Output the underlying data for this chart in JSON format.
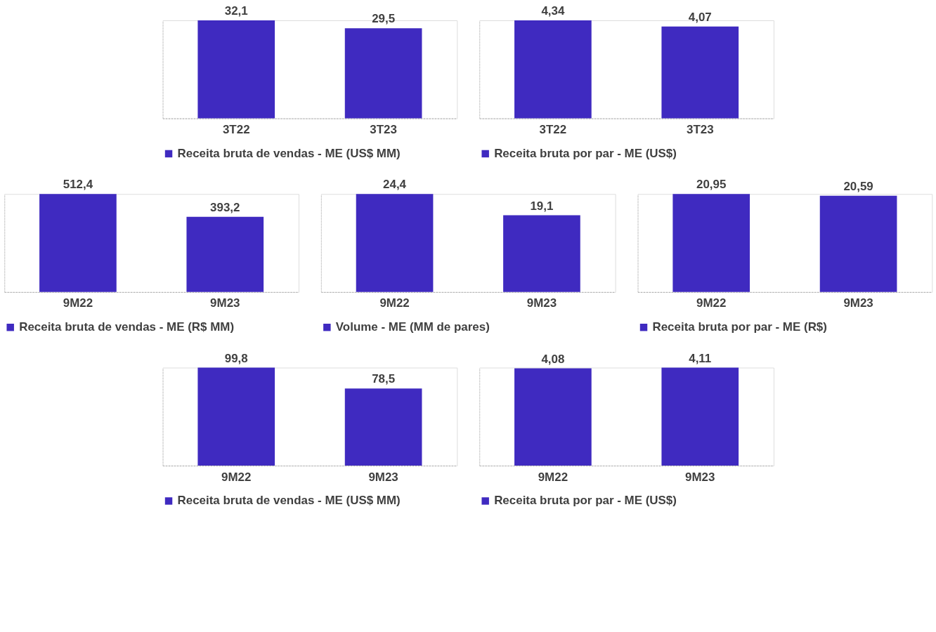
{
  "chart_data": [
    {
      "type": "bar",
      "categories": [
        "3T22",
        "3T23"
      ],
      "series": [
        {
          "name": "Receita bruta de vendas - ME (US$ MM)",
          "color": "#3f2ac0",
          "values": [
            32.1,
            29.5
          ],
          "value_labels": [
            "32,1",
            "29,5"
          ]
        }
      ],
      "legend": "bottom",
      "grid": false
    },
    {
      "type": "bar",
      "categories": [
        "3T22",
        "3T23"
      ],
      "series": [
        {
          "name": "Receita bruta por par - ME (US$)",
          "color": "#3f2ac0",
          "values": [
            4.34,
            4.07
          ],
          "value_labels": [
            "4,34",
            "4,07"
          ]
        }
      ],
      "legend": "bottom",
      "grid": false
    },
    {
      "type": "bar",
      "categories": [
        "9M22",
        "9M23"
      ],
      "series": [
        {
          "name": "Receita bruta de vendas - ME (R$ MM)",
          "color": "#3f2ac0",
          "values": [
            512.4,
            393.2
          ],
          "value_labels": [
            "512,4",
            "393,2"
          ]
        }
      ],
      "legend": "bottom",
      "grid": false
    },
    {
      "type": "bar",
      "categories": [
        "9M22",
        "9M23"
      ],
      "series": [
        {
          "name": "Volume - ME (MM de pares)",
          "color": "#3f2ac0",
          "values": [
            24.4,
            19.1
          ],
          "value_labels": [
            "24,4",
            "19,1"
          ]
        }
      ],
      "legend": "bottom",
      "grid": false
    },
    {
      "type": "bar",
      "categories": [
        "9M22",
        "9M23"
      ],
      "series": [
        {
          "name": "Receita bruta por par - ME (R$)",
          "color": "#3f2ac0",
          "values": [
            20.95,
            20.59
          ],
          "value_labels": [
            "20,95",
            "20,59"
          ]
        }
      ],
      "legend": "bottom",
      "grid": false
    },
    {
      "type": "bar",
      "categories": [
        "9M22",
        "9M23"
      ],
      "series": [
        {
          "name": "Receita bruta de vendas - ME (US$ MM)",
          "color": "#3f2ac0",
          "values": [
            99.8,
            78.5
          ],
          "value_labels": [
            "99,8",
            "78,5"
          ]
        }
      ],
      "legend": "bottom",
      "grid": false
    },
    {
      "type": "bar",
      "categories": [
        "9M22",
        "9M23"
      ],
      "series": [
        {
          "name": "Receita bruta por par - ME (US$)",
          "color": "#3f2ac0",
          "values": [
            4.08,
            4.11
          ],
          "value_labels": [
            "4,08",
            "4,11"
          ]
        }
      ],
      "legend": "bottom",
      "grid": false
    }
  ]
}
